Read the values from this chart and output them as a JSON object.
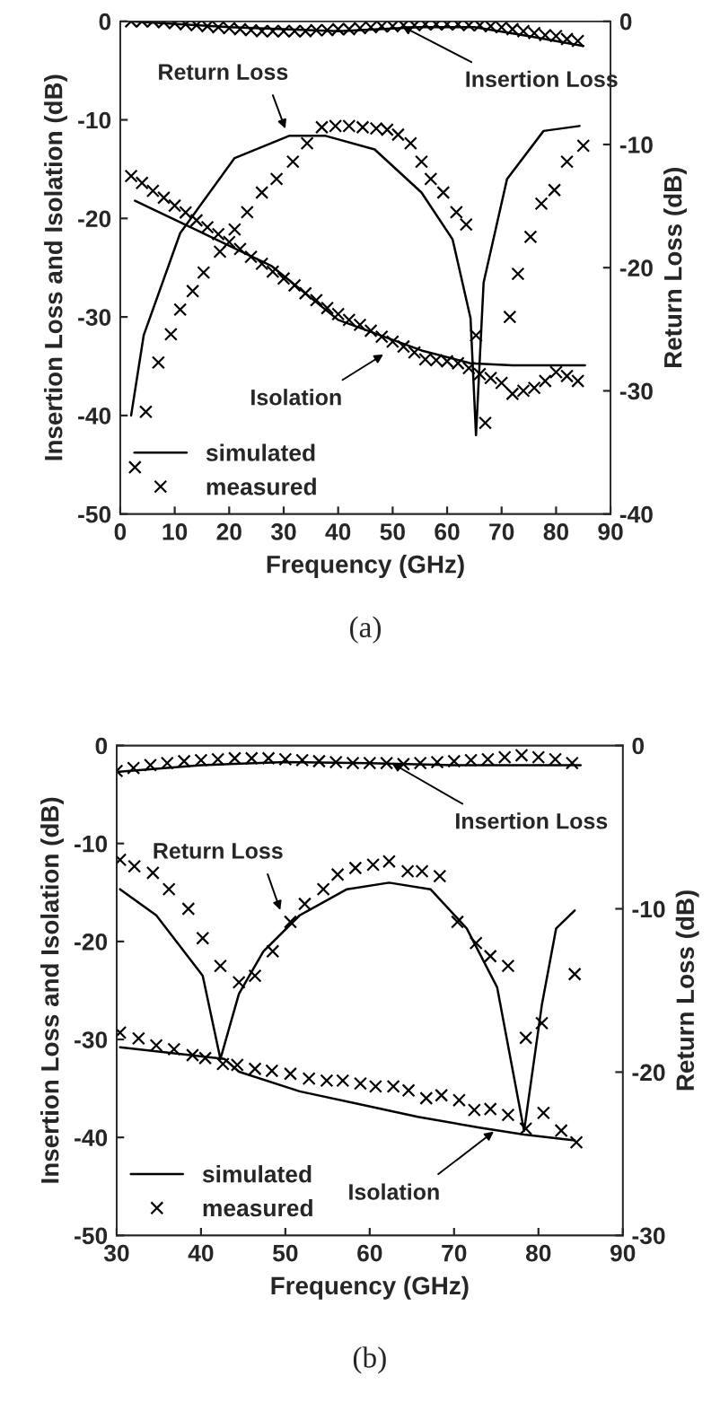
{
  "chart_data": [
    {
      "type": "line",
      "title": "(a)",
      "xlabel": "Frequency (GHz)",
      "ylabel": "Insertion Loss and Isolation (dB)",
      "y2label": "Return Loss (dB)",
      "xlim": [
        0,
        90
      ],
      "xticks": [
        0,
        10,
        20,
        30,
        40,
        50,
        60,
        70,
        80,
        90
      ],
      "ylim": [
        -50,
        0
      ],
      "yticks": [
        -50,
        -40,
        -30,
        -20,
        -10,
        0
      ],
      "y2lim": [
        -40,
        0
      ],
      "y2ticks": [
        -40,
        -30,
        -20,
        -10,
        0
      ],
      "legend": "bottom left",
      "series": [
        {
          "name": "simulated",
          "color": "#000000",
          "marker": "none",
          "line_style": "solid",
          "x": [
            2,
            20,
            40,
            55,
            65,
            75,
            85
          ],
          "values": [
            0,
            -0.6,
            -1,
            -0.6,
            -0.6,
            -1.5,
            -2.5
          ]
        },
        {
          "type": "scatter",
          "name": "measured",
          "color": "#000000",
          "marker": "cross",
          "x": [
            2,
            4,
            6,
            8,
            10,
            12,
            14,
            16,
            18,
            20,
            22,
            24,
            26,
            28,
            30,
            32,
            34,
            36,
            38,
            40,
            42,
            44,
            46,
            48,
            50,
            52,
            54,
            56,
            58,
            60,
            62,
            64,
            66,
            68,
            70,
            72,
            74,
            76,
            78,
            80,
            82,
            84
          ],
          "values": [
            0,
            0,
            0,
            -0.1,
            -0.2,
            -0.3,
            -0.4,
            -0.5,
            -0.6,
            -0.7,
            -0.8,
            -0.9,
            -1,
            -1,
            -1,
            -1,
            -1,
            -0.9,
            -0.9,
            -0.8,
            -0.8,
            -0.7,
            -0.6,
            -0.5,
            -0.5,
            -0.4,
            -0.4,
            -0.3,
            -0.3,
            -0.3,
            -0.3,
            -0.4,
            -0.4,
            -0.5,
            -0.6,
            -0.8,
            -1,
            -1.2,
            -1.4,
            -1.5,
            -1.8,
            -2
          ]
        },
        {
          "color": "#000000",
          "marker": "none",
          "line_style": "solid",
          "x": [
            2.7,
            27.7,
            40,
            55.3,
            64.3,
            72,
            85.3
          ],
          "values": [
            -18.2,
            -24.8,
            -30.3,
            -33.4,
            -34.7,
            -34.9,
            -34.9
          ]
        },
        {
          "type": "scatter",
          "color": "#000000",
          "marker": "cross",
          "x": [
            2,
            4,
            6,
            8,
            10,
            12,
            14,
            16,
            18,
            20,
            22,
            24,
            26,
            28,
            30,
            32,
            34,
            36,
            38,
            40,
            42,
            44,
            46,
            48,
            50,
            52,
            54,
            56,
            58,
            60,
            62,
            64,
            66,
            68,
            70,
            72,
            74,
            76,
            78,
            80,
            82,
            84
          ],
          "values": [
            -15.7,
            -16.4,
            -17.2,
            -17.9,
            -18.7,
            -19.4,
            -20.2,
            -20.9,
            -21.6,
            -22.4,
            -23.1,
            -23.9,
            -24.6,
            -25.4,
            -26.1,
            -26.8,
            -27.6,
            -28.3,
            -29.1,
            -29.7,
            -30.3,
            -30.8,
            -31.4,
            -32,
            -32.5,
            -33,
            -33.6,
            -34.3,
            -34.4,
            -34.5,
            -34.7,
            -35.2,
            -35.8,
            -36.2,
            -36.7,
            -37.8,
            -37.5,
            -37.2,
            -36.5,
            -35.6,
            -36,
            -36.5
          ]
        },
        {
          "color": "#000000",
          "marker": "none",
          "line_style": "solid",
          "axis": "y2",
          "x": [
            2,
            4.3,
            11,
            21,
            31,
            37.7,
            46.7,
            55.3,
            61,
            64.3,
            65.3,
            66.7,
            71,
            77.7,
            84.3
          ],
          "values": [
            -32,
            -25.5,
            -17.2,
            -11.1,
            -9.3,
            -9.3,
            -10.4,
            -13.9,
            -17.7,
            -24.1,
            -33.6,
            -21.2,
            -12.8,
            -8.9,
            -8.5
          ]
        },
        {
          "type": "scatter",
          "color": "#000000",
          "marker": "cross",
          "axis": "y2",
          "x": [
            2.7,
            4.7,
            7,
            9.3,
            11,
            13.3,
            15.3,
            18.3,
            21,
            23.3,
            26,
            28.7,
            31.7,
            34.3,
            37,
            39.5,
            42,
            44.5,
            47,
            49,
            51,
            53.3,
            55.3,
            57,
            59.3,
            61.7,
            63.5,
            65.3,
            67,
            71.5,
            73,
            75.3,
            77.3,
            79.7,
            82,
            85
          ],
          "values": [
            -36.2,
            -31.7,
            -27.7,
            -25.4,
            -23.4,
            -21.9,
            -20.4,
            -18.7,
            -16.9,
            -15.5,
            -13.9,
            -12.8,
            -11.4,
            -9.9,
            -8.6,
            -8.5,
            -8.5,
            -8.6,
            -8.7,
            -8.8,
            -9.2,
            -9.9,
            -11.4,
            -12.8,
            -13.9,
            -15.5,
            -16.5,
            -25.5,
            -32.6,
            -24,
            -20.5,
            -17.5,
            -14.8,
            -13.7,
            -11.4,
            -10.1
          ]
        }
      ],
      "annotations": [
        {
          "text": "Insertion Loss",
          "x": 51.7,
          "y": -0.5
        },
        {
          "text": "Return Loss",
          "x": 30.3,
          "y": -10.9
        },
        {
          "text": "Isolation",
          "x": 48.3,
          "y": -33.8
        }
      ]
    },
    {
      "type": "line",
      "title": "(b)",
      "xlabel": "Frequency (GHz)",
      "ylabel": "Insertion Loss and Isolation (dB)",
      "y2label": "Return Loss (dB)",
      "xlim": [
        30,
        90
      ],
      "xticks": [
        30,
        40,
        50,
        60,
        70,
        80,
        90
      ],
      "ylim": [
        -50,
        0
      ],
      "yticks": [
        -50,
        -40,
        -30,
        -20,
        -10,
        0
      ],
      "y2lim": [
        -30,
        0
      ],
      "y2ticks": [
        -30,
        -20,
        -10,
        0
      ],
      "legend": "bottom left",
      "series": [
        {
          "name": "simulated",
          "color": "#000000",
          "marker": "none",
          "line_style": "solid",
          "x": [
            30,
            40,
            50,
            60,
            70,
            85
          ],
          "values": [
            -2.7,
            -2,
            -1.7,
            -1.8,
            -2,
            -2
          ]
        },
        {
          "type": "scatter",
          "name": "measured",
          "color": "#000000",
          "marker": "cross",
          "x": [
            30,
            32,
            34,
            36,
            38,
            40,
            42,
            44,
            46,
            48,
            50,
            52,
            54,
            56,
            58,
            60,
            62,
            64,
            66,
            68,
            70,
            72,
            74,
            76,
            78,
            80,
            82,
            84
          ],
          "values": [
            -2.6,
            -2.3,
            -2,
            -1.8,
            -1.6,
            -1.5,
            -1.4,
            -1.3,
            -1.3,
            -1.3,
            -1.4,
            -1.5,
            -1.6,
            -1.7,
            -1.8,
            -1.8,
            -1.8,
            -1.9,
            -1.8,
            -1.7,
            -1.6,
            -1.5,
            -1.4,
            -1.2,
            -1,
            -1.2,
            -1.4,
            -1.8
          ]
        },
        {
          "color": "#000000",
          "marker": "none",
          "line_style": "solid",
          "x": [
            30.4,
            42.8,
            44.5,
            51.7,
            58.7,
            65.7,
            73,
            78.3,
            84.3
          ],
          "values": [
            -30.8,
            -32,
            -33.3,
            -35.3,
            -36.6,
            -37.9,
            -39,
            -39.7,
            -40.3
          ]
        },
        {
          "type": "scatter",
          "color": "#000000",
          "marker": "cross",
          "x": [
            30.4,
            32.6,
            34.7,
            36.8,
            39,
            40.5,
            42.6,
            44.3,
            46.4,
            48.4,
            50.6,
            52.8,
            54.9,
            56.8,
            58.9,
            60.7,
            62.8,
            64.6,
            66.7,
            68.5,
            70.6,
            72.4,
            74.3,
            76.4,
            78.5,
            80.6,
            82.7,
            84.5
          ],
          "values": [
            -29.3,
            -29.9,
            -30.6,
            -31,
            -31.6,
            -31.9,
            -32.5,
            -32.6,
            -33,
            -33.2,
            -33.5,
            -34,
            -34.2,
            -34.2,
            -34.5,
            -34.8,
            -34.8,
            -35.2,
            -36,
            -35.7,
            -36.2,
            -37.2,
            -37.1,
            -37.7,
            -39.1,
            -37.5,
            -39.3,
            -40.5
          ]
        },
        {
          "color": "#000000",
          "marker": "none",
          "line_style": "solid",
          "axis": "y2",
          "x": [
            30.4,
            34.7,
            40.2,
            42.3,
            44.5,
            47.4,
            51.7,
            57.3,
            62.3,
            67.2,
            71.5,
            75.1,
            78.3,
            80.4,
            82.1,
            84.3
          ],
          "values": [
            -8.8,
            -10.4,
            -14.1,
            -19.2,
            -15.2,
            -12.6,
            -10.4,
            -8.8,
            -8.4,
            -8.8,
            -11.2,
            -14.8,
            -23.6,
            -15.9,
            -11.2,
            -10.1
          ]
        },
        {
          "type": "scatter",
          "color": "#000000",
          "marker": "cross",
          "axis": "y2",
          "x": [
            30.4,
            32.1,
            34.3,
            36.2,
            38.5,
            40.2,
            42.3,
            44.5,
            46.4,
            48.5,
            50.6,
            52.3,
            54.5,
            56.2,
            58.3,
            60.4,
            62.3,
            64.5,
            66.2,
            68.3,
            70.4,
            72.6,
            74.3,
            76.4,
            78.5,
            80.4,
            84.3
          ],
          "values": [
            -7,
            -7.4,
            -7.8,
            -8.8,
            -10,
            -11.8,
            -13.5,
            -14.5,
            -14.1,
            -12.6,
            -10.8,
            -9.7,
            -8.8,
            -7.9,
            -7.5,
            -7.3,
            -7.1,
            -7.7,
            -7.7,
            -8,
            -10.8,
            -12.1,
            -12.9,
            -13.5,
            -17.9,
            -17,
            -14
          ]
        }
      ],
      "annotations": [
        {
          "text": "Insertion Loss",
          "x": 62.6,
          "y": -1.8
        },
        {
          "text": "Return Loss",
          "x": 49.4,
          "y": -16.8
        },
        {
          "text": "Isolation",
          "x": 74.7,
          "y": -39.4
        }
      ]
    }
  ]
}
